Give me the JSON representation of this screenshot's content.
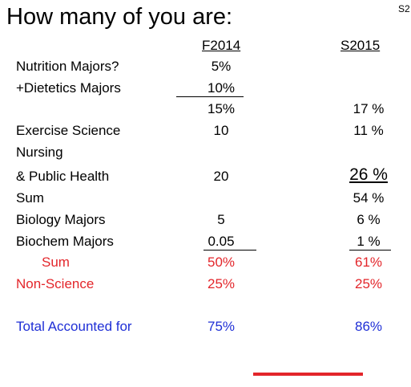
{
  "title": "How many of you are:",
  "corner_text": "S2",
  "headers": {
    "col1": "F2014",
    "col2": "S2015"
  },
  "rows": [
    {
      "label": "Nutrition Majors?",
      "col1": "5%",
      "col2": ""
    },
    {
      "label": "+Dietetics Majors",
      "col1": "10%",
      "col2": ""
    },
    {
      "label": "",
      "col1": "15%",
      "col2": "17 %"
    },
    {
      "label": "Exercise Science",
      "col1": "10",
      "col2": "11 %"
    },
    {
      "label": "Nursing",
      "col1": "",
      "col2": ""
    },
    {
      "label": "& Public Health",
      "col1": "20",
      "col2": "26 %"
    },
    {
      "label": "Sum",
      "col1": "",
      "col2": "54 %"
    },
    {
      "label": "Biology Majors",
      "col1": "5",
      "col2": "6 %"
    },
    {
      "label": "Biochem Majors",
      "col1": "0.05",
      "col2": "1 %"
    },
    {
      "label": "Sum",
      "col1": "50%",
      "col2": "61%"
    },
    {
      "label": "Non-Science",
      "col1": "25%",
      "col2": "25%"
    },
    {
      "label": "Total Accounted for",
      "col1": "75%",
      "col2": "86%"
    }
  ],
  "colors": {
    "text": "#000000",
    "red": "#e3262b",
    "blue": "#1f2fd6"
  }
}
